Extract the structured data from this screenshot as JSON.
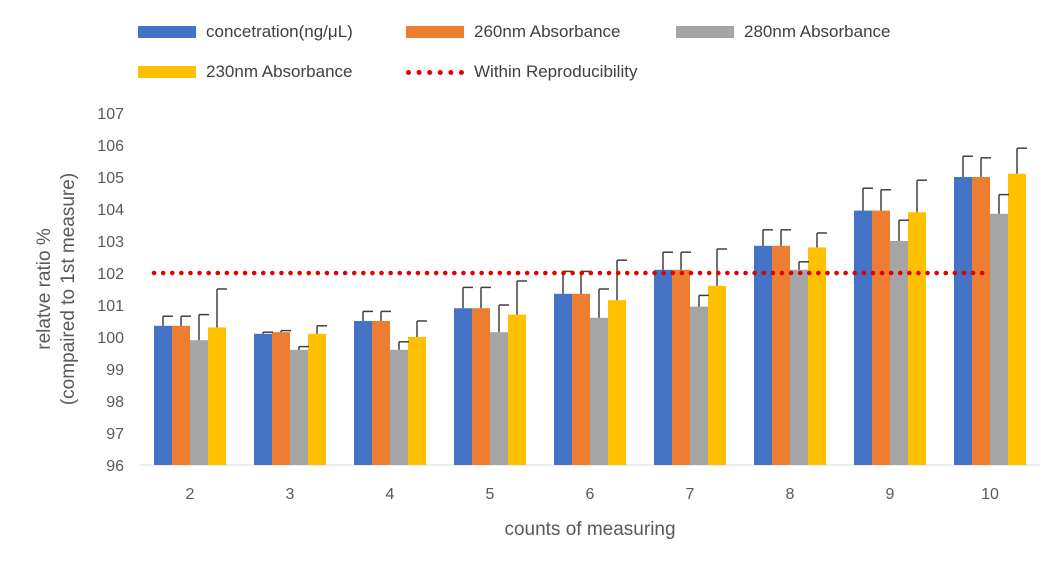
{
  "chart_data": {
    "type": "bar",
    "categories": [
      "2",
      "3",
      "4",
      "5",
      "6",
      "7",
      "8",
      "9",
      "10"
    ],
    "series": [
      {
        "name": "concetration(ng/μL)",
        "color": "#4472c4",
        "values": [
          100.35,
          100.1,
          100.5,
          100.9,
          101.35,
          102.1,
          102.85,
          103.95,
          105.0
        ],
        "errors": [
          0.3,
          0.05,
          0.3,
          0.65,
          0.7,
          0.55,
          0.5,
          0.7,
          0.65
        ]
      },
      {
        "name": "260nm Absorbance",
        "color": "#ed7d31",
        "values": [
          100.35,
          100.15,
          100.5,
          100.9,
          101.35,
          102.1,
          102.85,
          103.95,
          105.0
        ],
        "errors": [
          0.3,
          0.05,
          0.3,
          0.65,
          0.7,
          0.55,
          0.5,
          0.65,
          0.6
        ]
      },
      {
        "name": "280nm Absorbance",
        "color": "#a5a5a5",
        "values": [
          99.9,
          99.6,
          99.6,
          100.15,
          100.6,
          100.95,
          102.1,
          103.0,
          103.85
        ],
        "errors": [
          0.8,
          0.1,
          0.25,
          0.85,
          0.9,
          0.35,
          0.25,
          0.65,
          0.6
        ]
      },
      {
        "name": "230nm Absorbance",
        "color": "#ffc000",
        "values": [
          100.3,
          100.1,
          100.0,
          100.7,
          101.15,
          101.6,
          102.8,
          103.9,
          105.1
        ],
        "errors": [
          1.2,
          0.25,
          0.5,
          1.05,
          1.25,
          1.15,
          0.45,
          1.0,
          0.8
        ]
      }
    ],
    "reference_line": {
      "name": "Within Reproducibility",
      "value": 102,
      "color": "#e00000",
      "style": "dotted"
    },
    "xlabel": "counts of measuring",
    "ylabel_line1": "relatve ratio %",
    "ylabel_line2": "(compaired to 1st measure)",
    "ylim": [
      96,
      107
    ],
    "yticks": [
      "96",
      "97",
      "98",
      "99",
      "100",
      "101",
      "102",
      "103",
      "104",
      "105",
      "106",
      "107"
    ],
    "grid": false,
    "legend_position": "top"
  }
}
